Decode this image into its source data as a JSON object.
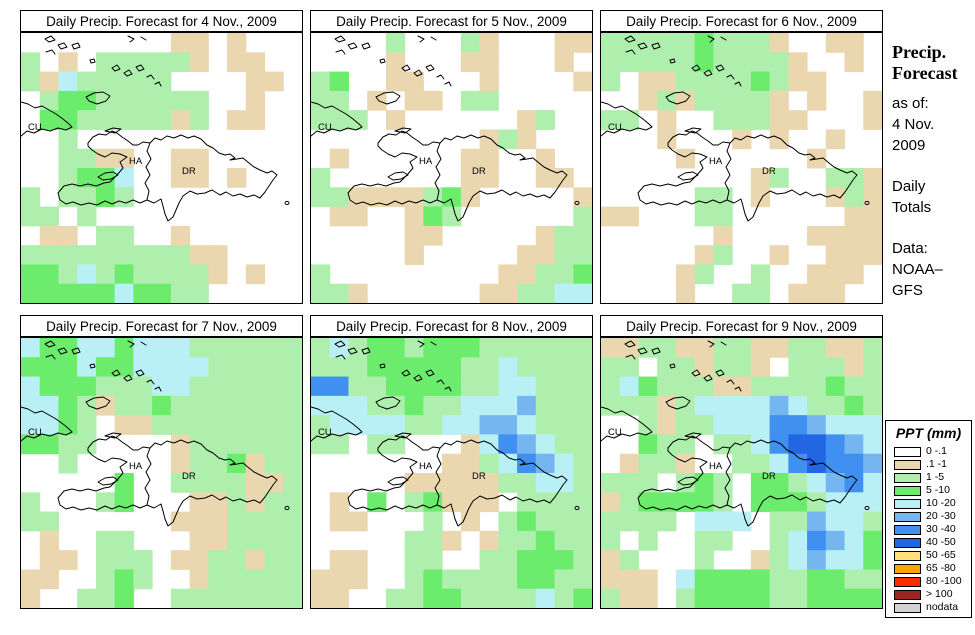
{
  "sidebar": {
    "title_line1": "Precip.",
    "title_line2": "Forecast",
    "as_of_label": "as of:",
    "as_of_line1": "4 Nov.",
    "as_of_line2": "2009",
    "totals_line1": "Daily",
    "totals_line2": "Totals",
    "source_label": "Data:",
    "source_line1": "NOAA–",
    "source_line2": "GFS"
  },
  "map_labels": {
    "cuba": "CU",
    "haiti": "HA",
    "dominican_republic": "DR"
  },
  "legend": {
    "title": "PPT (mm)",
    "entries": [
      {
        "label": "0 -.1",
        "color": "#FFFFFF"
      },
      {
        "label": ".1 -1",
        "color": "#EBD7AF"
      },
      {
        "label": "1 -5",
        "color": "#AEEFAD"
      },
      {
        "label": "5 -10",
        "color": "#6CEC6C"
      },
      {
        "label": "10 -20",
        "color": "#B9F0F6"
      },
      {
        "label": "20 -30",
        "color": "#75B6F1"
      },
      {
        "label": "30 -40",
        "color": "#3F90F0"
      },
      {
        "label": "40 -50",
        "color": "#2366E3"
      },
      {
        "label": "50 -65",
        "color": "#FFE17C"
      },
      {
        "label": "65 -80",
        "color": "#FEA301"
      },
      {
        "label": "80 -100",
        "color": "#FE2B00"
      },
      {
        "label": "> 100",
        "color": "#A02422"
      },
      {
        "label": "nodata",
        "color": "#D3D3D3"
      }
    ]
  },
  "palette": {
    "0": "#FFFFFF",
    "1": "#EBD7AF",
    "2": "#AEEFAD",
    "3": "#6CEC6C",
    "4": "#B9F0F6",
    "5": "#75B6F1",
    "6": "#3F90F0",
    "7": "#2366E3"
  },
  "chart_data": {
    "type": "heatmap",
    "title": "Daily precipitation forecast maps for Hispaniola (Haiti / Dominican Republic) and surroundings, six daily panels, NOAA-GFS",
    "grid_columns": 15,
    "grid_rows": 14,
    "value_codes": {
      "0": "0-0.1 mm",
      "1": "0.1-1 mm",
      "2": "1-5 mm",
      "3": "5-10 mm",
      "4": "10-20 mm",
      "5": "20-30 mm",
      "6": "30-40 mm",
      "7": "40-50 mm"
    },
    "panels": [
      {
        "title": "Daily Precip. Forecast for 4 Nov., 2009",
        "grid": [
          "000000001101000",
          "201022222101100",
          "214222220000110",
          "023322222200100",
          "033222221201100",
          "002000000000000",
          "002211001100000",
          "002334001101000",
          "202232000000000",
          "220200000000000",
          "011022001000000",
          "222222222110000",
          "332423222210100",
          "333334332200000"
        ]
      },
      {
        "title": "Daily Precip. Forecast for 5 Nov., 2009",
        "grid": [
          "000020002100011",
          "000010001100010",
          "230011000100001",
          "220101102200000",
          "222010000001200",
          "000000000121000",
          "010000001100100",
          "200000001100110",
          "221111231000001",
          "011001320000002",
          "000001100000122",
          "000001000001122",
          "200000000011223",
          "221000000112244"
        ]
      },
      {
        "title": "Daily Precip. Forecast for 6 Nov., 2009",
        "grid": [
          "222223222100110",
          "222223222210010",
          "201122223211000",
          "001212222101001",
          "220100222110001",
          "000100010100100",
          "000010000001000",
          "000000001200221",
          "000002201000121",
          "110002200000011",
          "000000100001111",
          "000001200100111",
          "000012002001110",
          "000010022011100"
        ]
      },
      {
        "title": "Daily Precip. Forecast for 7 Nov., 2009",
        "grid": [
          "433443444222222",
          "333433444422222",
          "433322244222222",
          "443212232222222",
          "443201122222222",
          "332200001222222",
          "002000001223122",
          "000003002222112",
          "200023000112122",
          "220000001112222",
          "010022000112222",
          "011022201122122",
          "110023200122222",
          "100223002222222"
        ]
      },
      {
        "title": "Daily Precip. Forecast for 8 Nov., 2009",
        "grid": [
          "242332333222222",
          "222333332242222",
          "662233332244222",
          "444223224445222",
          "244442244554222",
          "220220001465422",
          "000000011246542",
          "000001111122442",
          "010302311102222",
          "011000201023222",
          "000002210122322",
          "011002200223332",
          "111002322223322",
          "110022332222423"
        ]
      },
      {
        "title": "Daily Precip. Forecast for 9 Nov., 2009",
        "grid": [
          "112211221122112",
          "220221221022212",
          "243222112222322",
          "222124444542232",
          "002122444665444",
          "003220224677654",
          "012210022467665",
          "222023203324564",
          "123333203332444",
          "222204440225442",
          "202002200246543",
          "120002001245443",
          "111043333223322",
          "211023333223333"
        ]
      }
    ]
  }
}
